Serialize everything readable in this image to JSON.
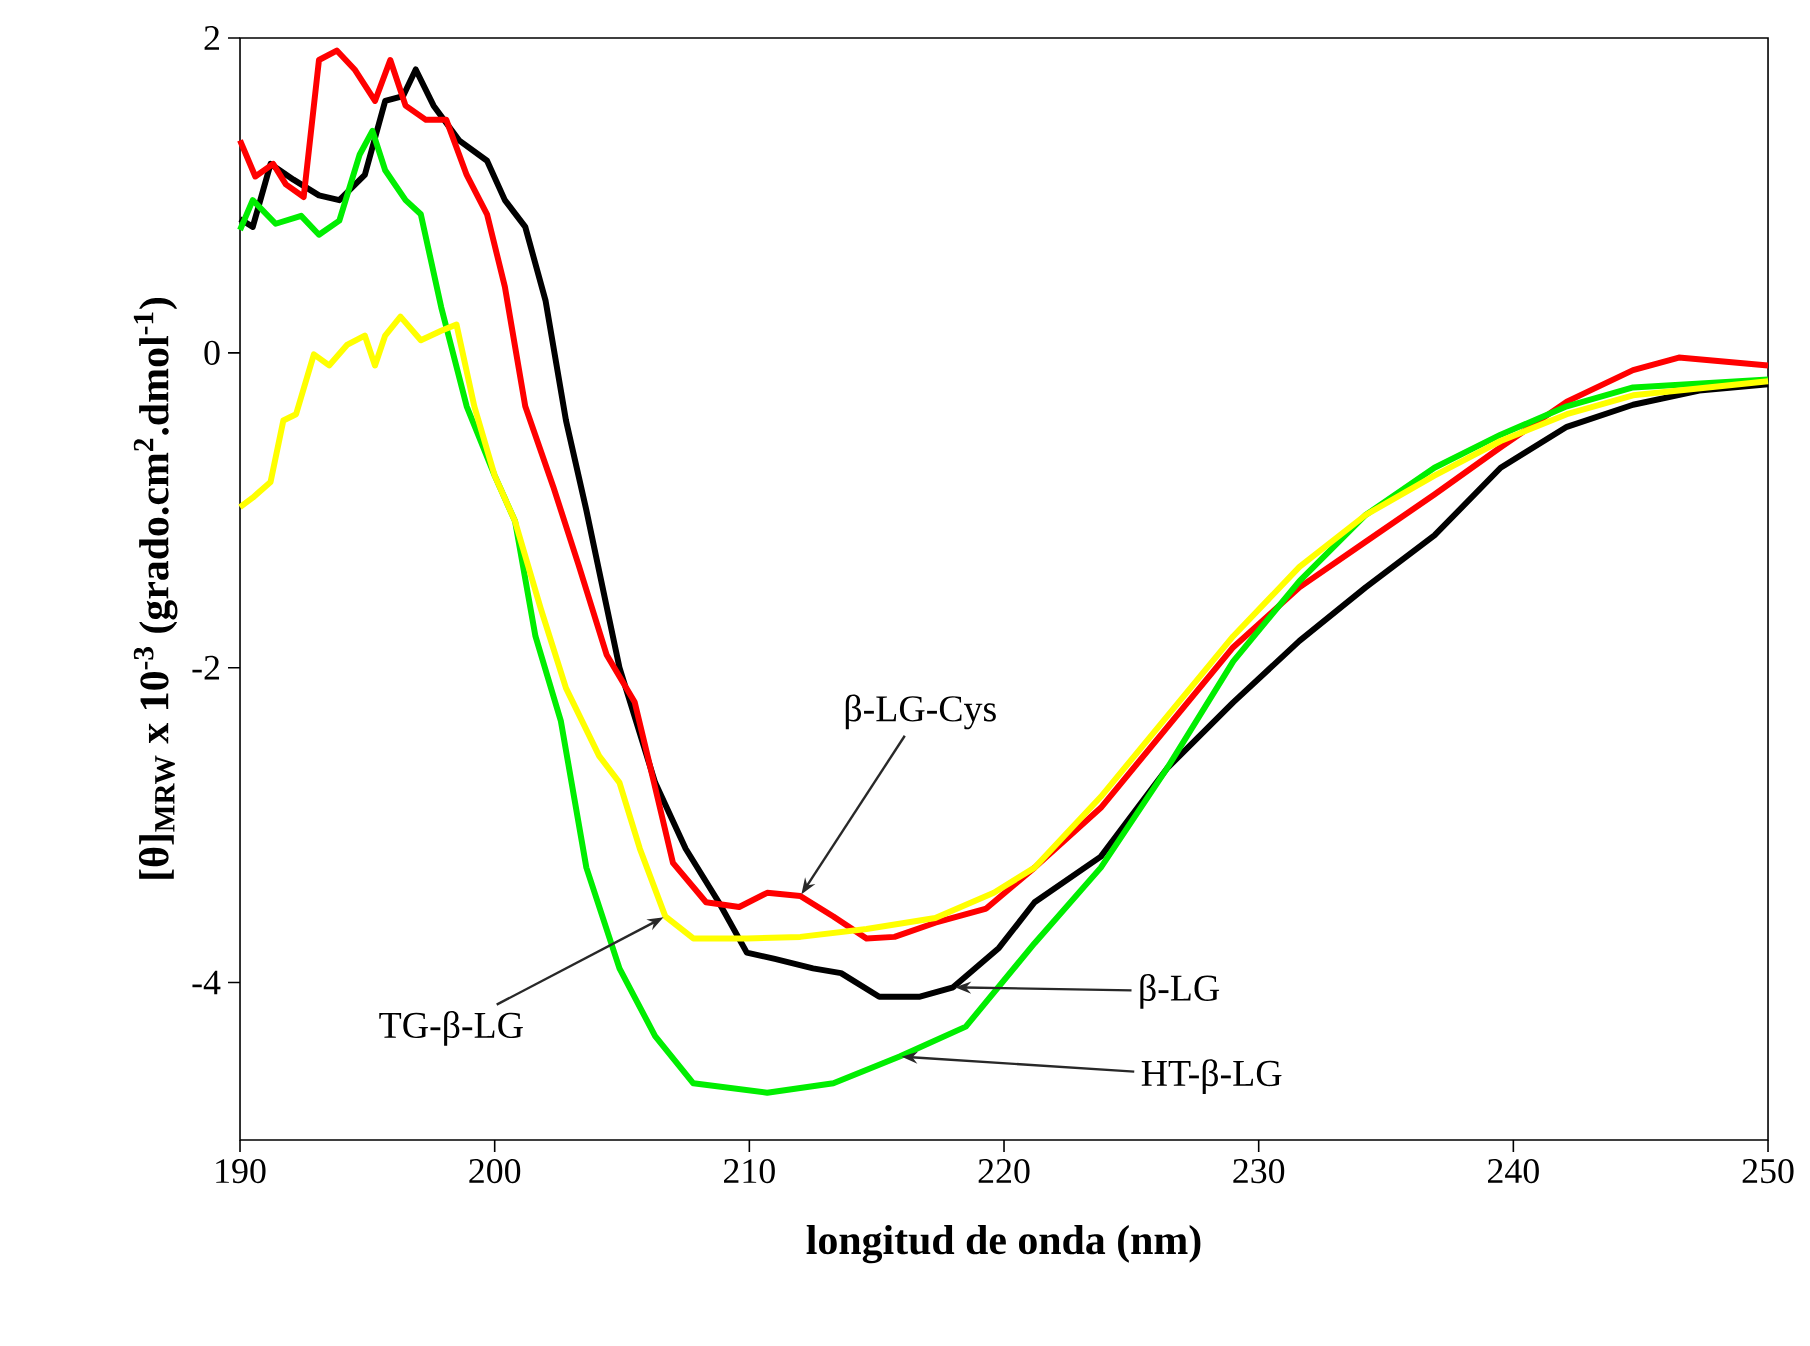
{
  "chart_data": {
    "type": "line",
    "xlabel": "longitud de onda (nm)",
    "ylabel": "[θ]$_{MRW}$ x 10$^{-3}$ (grado.cm$^{2}$.dmol$^{-1}$)",
    "xlim": [
      190,
      250
    ],
    "ylim": [
      -5,
      2
    ],
    "xticks": [
      190,
      200,
      210,
      220,
      230,
      240,
      250
    ],
    "yticks": [
      {
        "value": -4,
        "label": "-4"
      },
      {
        "value": -2,
        "label": "-2"
      },
      {
        "value": 0,
        "label": "0"
      },
      {
        "value": 2,
        "label": "2"
      }
    ],
    "grid": false,
    "legend": false,
    "marker": "none",
    "line_style": "solid",
    "series": [
      {
        "color": "#000000",
        "x": [
          190,
          190.5,
          191.2,
          192.1,
          193.1,
          193.9,
          194.9,
          195.7,
          196.4,
          196.9,
          197.6,
          198.6,
          199.7,
          200.4,
          201.2,
          202.0,
          202.8,
          203.6,
          204.9,
          206.3,
          207.5,
          208.8,
          209.9,
          211.0,
          212.5,
          213.6,
          215.1,
          216.7,
          218.0,
          219.8,
          221.2,
          223.8,
          226.4,
          229.0,
          231.6,
          234.2,
          236.9,
          239.5,
          242.1,
          244.7,
          247.3,
          250
        ],
        "values": [
          0.85,
          0.8,
          1.2,
          1.1,
          1.0,
          0.97,
          1.13,
          1.6,
          1.63,
          1.8,
          1.57,
          1.35,
          1.22,
          0.97,
          0.8,
          0.33,
          -0.43,
          -1.0,
          -2.0,
          -2.73,
          -3.15,
          -3.49,
          -3.81,
          -3.85,
          -3.91,
          -3.94,
          -4.09,
          -4.09,
          -4.03,
          -3.78,
          -3.49,
          -3.2,
          -2.64,
          -2.22,
          -1.83,
          -1.49,
          -1.16,
          -0.73,
          -0.47,
          -0.33,
          -0.24,
          -0.2
        ]
      },
      {
        "color": "#ff0000",
        "x": [
          190,
          190.6,
          191.3,
          191.8,
          192.5,
          193.1,
          193.8,
          194.5,
          195.3,
          195.9,
          196.5,
          197.3,
          198.1,
          198.9,
          199.7,
          200.4,
          201.2,
          202.3,
          203.3,
          204.4,
          205.5,
          206.3,
          207.0,
          208.3,
          209.6,
          210.7,
          212.0,
          213.3,
          214.6,
          215.7,
          217.3,
          219.3,
          221.2,
          223.8,
          226.4,
          229.0,
          231.6,
          234.2,
          236.9,
          239.5,
          242.1,
          244.7,
          246.5,
          250
        ],
        "values": [
          1.35,
          1.12,
          1.2,
          1.07,
          0.99,
          1.86,
          1.92,
          1.8,
          1.6,
          1.86,
          1.57,
          1.48,
          1.48,
          1.13,
          0.88,
          0.42,
          -0.34,
          -0.85,
          -1.35,
          -1.92,
          -2.22,
          -2.76,
          -3.24,
          -3.49,
          -3.52,
          -3.43,
          -3.45,
          -3.58,
          -3.72,
          -3.71,
          -3.62,
          -3.53,
          -3.27,
          -2.89,
          -2.38,
          -1.87,
          -1.49,
          -1.2,
          -0.9,
          -0.6,
          -0.31,
          -0.11,
          -0.03,
          -0.08
        ]
      },
      {
        "color": "#00ee00",
        "x": [
          190,
          190.5,
          191.4,
          192.4,
          193.1,
          193.9,
          194.7,
          195.2,
          195.7,
          196.5,
          197.1,
          197.9,
          198.9,
          200.0,
          200.8,
          201.6,
          202.6,
          203.6,
          204.9,
          206.3,
          207.8,
          210.7,
          213.3,
          215.9,
          218.5,
          221.2,
          223.8,
          226.4,
          229.0,
          231.6,
          234.2,
          236.9,
          239.5,
          242.1,
          244.7,
          250
        ],
        "values": [
          0.78,
          0.97,
          0.82,
          0.87,
          0.75,
          0.84,
          1.26,
          1.41,
          1.16,
          0.97,
          0.88,
          0.29,
          -0.34,
          -0.78,
          -1.07,
          -1.8,
          -2.34,
          -3.27,
          -3.91,
          -4.34,
          -4.64,
          -4.7,
          -4.64,
          -4.47,
          -4.28,
          -3.75,
          -3.27,
          -2.64,
          -1.96,
          -1.45,
          -1.03,
          -0.73,
          -0.52,
          -0.34,
          -0.22,
          -0.17
        ]
      },
      {
        "color": "#ffff00",
        "x": [
          190,
          190.5,
          191.2,
          191.7,
          192.2,
          192.9,
          193.5,
          194.2,
          194.9,
          195.3,
          195.7,
          196.3,
          197.1,
          197.9,
          198.5,
          199.2,
          200.0,
          200.8,
          201.8,
          202.8,
          204.1,
          204.9,
          205.7,
          206.7,
          207.8,
          209.9,
          212.0,
          214.6,
          217.3,
          219.6,
          221.2,
          223.8,
          226.4,
          229.0,
          231.6,
          234.2,
          236.9,
          239.5,
          242.1,
          244.7,
          250
        ],
        "values": [
          -0.98,
          -0.92,
          -0.82,
          -0.43,
          -0.39,
          -0.01,
          -0.08,
          0.05,
          0.11,
          -0.08,
          0.11,
          0.23,
          0.08,
          0.14,
          0.18,
          -0.34,
          -0.78,
          -1.07,
          -1.62,
          -2.13,
          -2.56,
          -2.73,
          -3.15,
          -3.58,
          -3.72,
          -3.72,
          -3.71,
          -3.66,
          -3.59,
          -3.43,
          -3.27,
          -2.82,
          -2.31,
          -1.8,
          -1.36,
          -1.03,
          -0.78,
          -0.56,
          -0.39,
          -0.27,
          -0.18
        ]
      }
    ],
    "annotations": [
      {
        "text": "β-LG-Cys",
        "x": 212.0,
        "y": -3.45
      },
      {
        "text": "TG-β-LG",
        "x": 206.7,
        "y": -3.58
      },
      {
        "text": "β-LG",
        "x": 218.0,
        "y": -4.03
      },
      {
        "text": "HT-β-LG",
        "x": 215.9,
        "y": -4.47
      }
    ]
  }
}
